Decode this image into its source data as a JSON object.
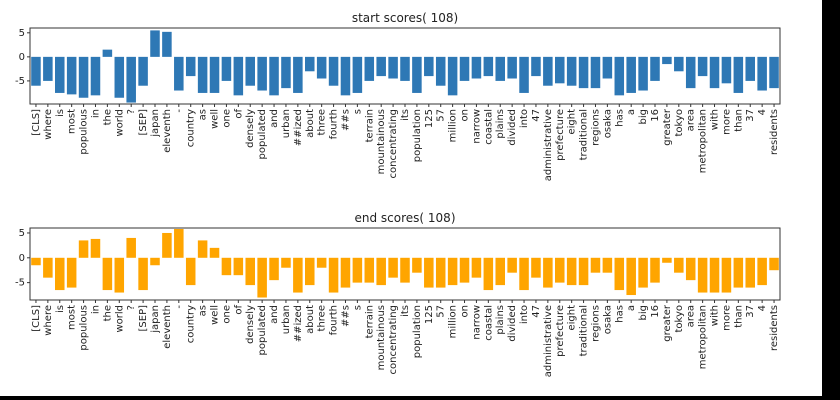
{
  "chart_data": [
    {
      "type": "bar",
      "title": "start scores( 108)",
      "color": "#2e78b5",
      "categories": [
        "[CLS]",
        "where",
        "is",
        "most",
        "populous",
        "in",
        "the",
        "world",
        "?",
        "[SEP]",
        "japan",
        "eleventh",
        "-",
        "country",
        "as",
        "well",
        "one",
        "of",
        "densely",
        "populated",
        "and",
        "urban",
        "##ized",
        "about",
        "three",
        "fourth",
        "##s",
        "s",
        "terrain",
        "mountainous",
        "concentrating",
        "its",
        "population",
        "125",
        "57",
        "million",
        "on",
        "narrow",
        "coastal",
        "plains",
        "divided",
        "into",
        "47",
        "administrative",
        "prefecture",
        "eight",
        "traditional",
        "regions",
        "osaka",
        "has",
        "a",
        "big",
        "16",
        "greater",
        "tokyo",
        "area",
        "metropolitan",
        "with",
        "more",
        "than",
        "37",
        "4",
        "residents"
      ],
      "values": [
        -6,
        -5,
        -7.5,
        -7.8,
        -8.5,
        -8,
        1.5,
        -8.5,
        -9.5,
        -6,
        5.5,
        5.2,
        -7,
        -4,
        -7.5,
        -7.5,
        -5,
        -8,
        -6,
        -7,
        -8,
        -6.5,
        -7.5,
        -3,
        -4.5,
        -6,
        -8,
        -7.5,
        -5,
        -4,
        -4.5,
        -5,
        -7.5,
        -4,
        -6,
        -8,
        -5,
        -4.5,
        -4,
        -5,
        -4.5,
        -7.5,
        -4,
        -6,
        -5.5,
        -6,
        -6.5,
        -6.5,
        -4.5,
        -8,
        -7.5,
        -7,
        -5,
        -1.5,
        -3,
        -6.5,
        -4,
        -6.5,
        -5.5,
        -7.5,
        -5,
        -7,
        -6.5
      ],
      "ylim": [
        -9.8,
        6
      ],
      "yticks": [
        -5,
        0,
        5
      ]
    },
    {
      "type": "bar",
      "title": "end scores( 108)",
      "color": "#ffa500",
      "categories": [
        "[CLS]",
        "where",
        "is",
        "most",
        "populous",
        "in",
        "the",
        "world",
        "?",
        "[SEP]",
        "japan",
        "eleventh",
        "-",
        "country",
        "as",
        "well",
        "one",
        "of",
        "densely",
        "populated",
        "and",
        "urban",
        "##ized",
        "about",
        "three",
        "fourth",
        "##s",
        "s",
        "terrain",
        "mountainous",
        "concentrating",
        "its",
        "population",
        "125",
        "57",
        "million",
        "on",
        "narrow",
        "coastal",
        "plains",
        "divided",
        "into",
        "47",
        "administrative",
        "prefecture",
        "eight",
        "traditional",
        "regions",
        "osaka",
        "has",
        "a",
        "big",
        "16",
        "greater",
        "tokyo",
        "area",
        "metropolitan",
        "with",
        "more",
        "than",
        "37",
        "4",
        "residents"
      ],
      "values": [
        -1.5,
        -4,
        -6.5,
        -6,
        3.5,
        3.8,
        -6.5,
        -7,
        4,
        -6.5,
        -1.5,
        5,
        5.8,
        -5.5,
        3.5,
        2,
        -3.5,
        -3.5,
        -5.5,
        -8,
        -4.5,
        -2,
        -7,
        -5.5,
        -2,
        -7,
        -6,
        -5,
        -5,
        -5.5,
        -4,
        -5,
        -3,
        -6,
        -6,
        -5.5,
        -5,
        -4,
        -6.5,
        -5.5,
        -3,
        -6.5,
        -4,
        -6,
        -5,
        -5.5,
        -5.5,
        -3,
        -3,
        -6.5,
        -7.5,
        -6,
        -5,
        -1,
        -3,
        -4.5,
        -7,
        -7,
        -7,
        -6,
        -6,
        -5.5,
        -2.5
      ],
      "ylim": [
        -8.5,
        6
      ],
      "yticks": [
        -5,
        0,
        5
      ]
    }
  ]
}
